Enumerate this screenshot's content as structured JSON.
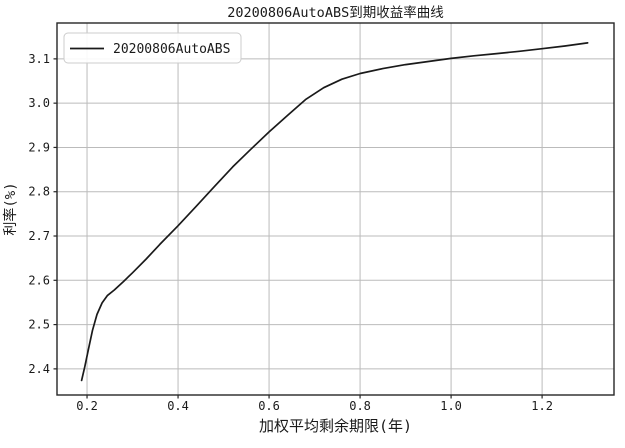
{
  "chart_data": {
    "type": "line",
    "title": "20200806AutoABS到期收益率曲线",
    "xlabel": "加权平均剩余期限(年)",
    "ylabel": "利率(%)",
    "xlim": [
      0.134,
      1.358
    ],
    "ylim": [
      2.341,
      3.181
    ],
    "grid": true,
    "legend_position": "upper left",
    "x_tick_values": [
      0.2,
      0.4,
      0.6,
      0.8,
      1.0,
      1.2
    ],
    "x_tick_labels": [
      "0.2",
      "0.4",
      "0.6",
      "0.8",
      "1.0",
      "1.2"
    ],
    "y_tick_values": [
      2.4,
      2.5,
      2.6,
      2.7,
      2.8,
      2.9,
      3.0,
      3.1
    ],
    "y_tick_labels": [
      "2.4",
      "2.5",
      "2.6",
      "2.7",
      "2.8",
      "2.9",
      "3.0",
      "3.1"
    ],
    "series": [
      {
        "name": "20200806AutoABS",
        "color": "#1a1a1a",
        "points": [
          [
            0.188,
            2.374
          ],
          [
            0.195,
            2.405
          ],
          [
            0.203,
            2.444
          ],
          [
            0.212,
            2.487
          ],
          [
            0.222,
            2.523
          ],
          [
            0.233,
            2.549
          ],
          [
            0.245,
            2.566
          ],
          [
            0.26,
            2.578
          ],
          [
            0.28,
            2.597
          ],
          [
            0.3,
            2.617
          ],
          [
            0.33,
            2.648
          ],
          [
            0.36,
            2.681
          ],
          [
            0.4,
            2.723
          ],
          [
            0.44,
            2.767
          ],
          [
            0.48,
            2.812
          ],
          [
            0.52,
            2.856
          ],
          [
            0.56,
            2.896
          ],
          [
            0.6,
            2.935
          ],
          [
            0.64,
            2.972
          ],
          [
            0.68,
            3.008
          ],
          [
            0.72,
            3.035
          ],
          [
            0.76,
            3.054
          ],
          [
            0.8,
            3.067
          ],
          [
            0.85,
            3.078
          ],
          [
            0.9,
            3.087
          ],
          [
            0.95,
            3.094
          ],
          [
            1.0,
            3.101
          ],
          [
            1.05,
            3.107
          ],
          [
            1.1,
            3.112
          ],
          [
            1.15,
            3.117
          ],
          [
            1.2,
            3.123
          ],
          [
            1.25,
            3.129
          ],
          [
            1.3,
            3.136
          ]
        ]
      }
    ],
    "colors": {
      "grid": "#bbbbbb",
      "spine": "#262626",
      "text": "#1a1a1a",
      "background": "#ffffff"
    }
  }
}
